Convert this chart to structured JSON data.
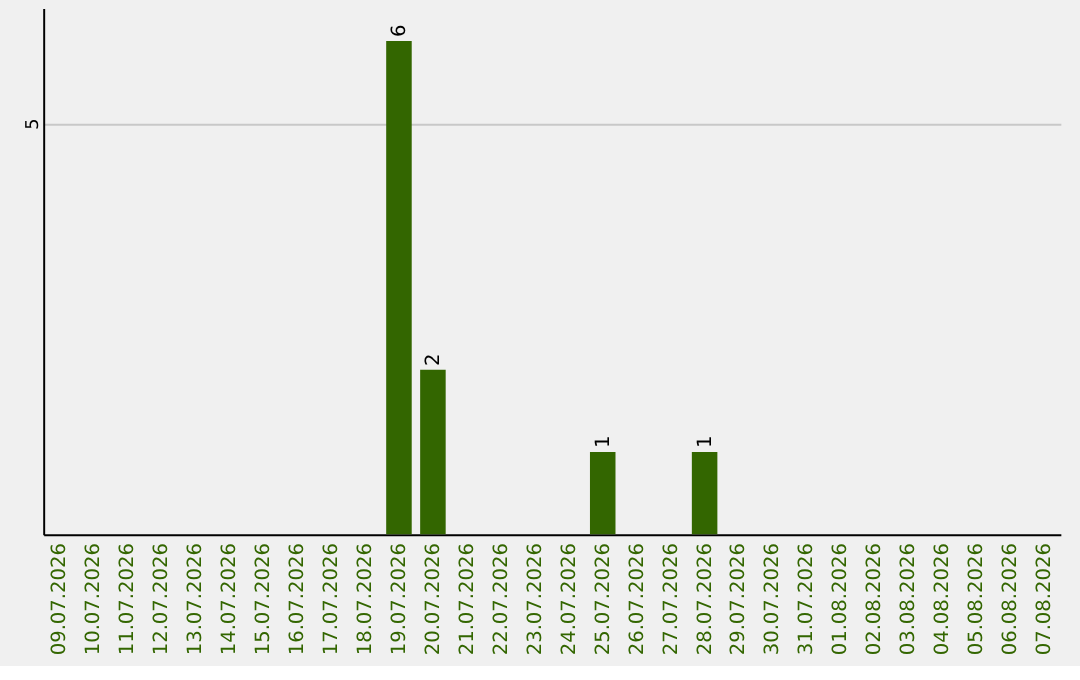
{
  "chart_data": {
    "type": "bar",
    "categories": [
      "09.07.2026",
      "10.07.2026",
      "11.07.2026",
      "12.07.2026",
      "13.07.2026",
      "14.07.2026",
      "15.07.2026",
      "16.07.2026",
      "17.07.2026",
      "18.07.2026",
      "19.07.2026",
      "20.07.2026",
      "21.07.2026",
      "22.07.2026",
      "23.07.2026",
      "24.07.2026",
      "25.07.2026",
      "26.07.2026",
      "27.07.2026",
      "28.07.2026",
      "29.07.2026",
      "30.07.2026",
      "31.07.2026",
      "01.08.2026",
      "02.08.2026",
      "03.08.2026",
      "04.08.2026",
      "05.08.2026",
      "06.08.2026",
      "07.08.2026"
    ],
    "values": [
      0,
      0,
      0,
      0,
      0,
      0,
      0,
      0,
      0,
      0,
      6,
      2,
      0,
      0,
      0,
      0,
      1,
      0,
      0,
      1,
      0,
      0,
      0,
      0,
      0,
      0,
      0,
      0,
      0,
      0
    ],
    "value_labels": [
      null,
      null,
      null,
      null,
      null,
      null,
      null,
      null,
      null,
      null,
      "6",
      "2",
      null,
      null,
      null,
      null,
      "1",
      null,
      null,
      "1",
      null,
      null,
      null,
      null,
      null,
      null,
      null,
      null,
      null,
      null
    ],
    "color": "#336600",
    "ylim": [
      0,
      6.4
    ],
    "yticks": [
      5
    ],
    "grid": "y"
  }
}
